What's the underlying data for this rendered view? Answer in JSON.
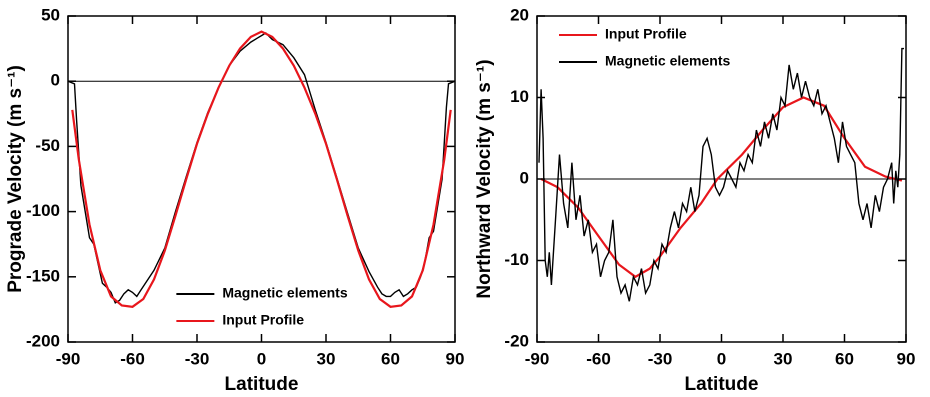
{
  "chart_data": [
    {
      "type": "line",
      "xlabel": "Latitude",
      "ylabel": "Prograde Velocity (m s⁻¹)",
      "xlim": [
        -90,
        90
      ],
      "ylim": [
        -200,
        50
      ],
      "xticks": [
        -90,
        -60,
        -30,
        0,
        30,
        60,
        90
      ],
      "yticks": [
        -200,
        -150,
        -100,
        -50,
        0,
        50
      ],
      "legend": "lower center",
      "series": [
        {
          "name": "Magnetic elements",
          "color": "#000000",
          "x": [
            -90,
            -87,
            -86,
            -84,
            -82,
            -80,
            -78,
            -76,
            -74,
            -72,
            -70,
            -68,
            -66,
            -64,
            -62,
            -60,
            -58,
            -56,
            -54,
            -50,
            -45,
            -40,
            -35,
            -30,
            -25,
            -20,
            -15,
            -10,
            -5,
            -2,
            0,
            2,
            5,
            10,
            15,
            20,
            25,
            30,
            35,
            40,
            45,
            50,
            54,
            56,
            58,
            60,
            62,
            64,
            66,
            68,
            70,
            72,
            74,
            76,
            78,
            80,
            82,
            84,
            86,
            87,
            90
          ],
          "values": [
            0,
            -2,
            -30,
            -80,
            -100,
            -120,
            -125,
            -140,
            -155,
            -158,
            -162,
            -170,
            -168,
            -163,
            -160,
            -162,
            -165,
            -160,
            -155,
            -145,
            -128,
            -100,
            -73,
            -47,
            -24,
            -5,
            12,
            23,
            30,
            33,
            35,
            37,
            32,
            28,
            18,
            5,
            -22,
            -47,
            -74,
            -101,
            -128,
            -146,
            -158,
            -163,
            -165,
            -165,
            -162,
            -160,
            -165,
            -163,
            -160,
            -158,
            -150,
            -138,
            -120,
            -115,
            -95,
            -75,
            -20,
            -2,
            0
          ]
        },
        {
          "name": "Input Profile",
          "color": "#e8161c",
          "x": [
            -88,
            -85,
            -80,
            -75,
            -70,
            -65,
            -60,
            -55,
            -50,
            -45,
            -40,
            -35,
            -30,
            -25,
            -20,
            -15,
            -10,
            -5,
            0,
            5,
            10,
            15,
            20,
            25,
            30,
            35,
            40,
            45,
            50,
            55,
            60,
            65,
            70,
            75,
            80,
            85,
            88
          ],
          "values": [
            -22,
            -60,
            -110,
            -145,
            -165,
            -172,
            -173,
            -167,
            -152,
            -130,
            -103,
            -75,
            -48,
            -25,
            -5,
            12,
            25,
            34,
            38,
            34,
            25,
            12,
            -5,
            -25,
            -48,
            -75,
            -103,
            -130,
            -152,
            -167,
            -173,
            -172,
            -165,
            -145,
            -110,
            -60,
            -22
          ]
        }
      ]
    },
    {
      "type": "line",
      "xlabel": "Latitude",
      "ylabel": "Northward Velocity (m s⁻¹)",
      "xlim": [
        -90,
        90
      ],
      "ylim": [
        -20,
        20
      ],
      "xticks": [
        -90,
        -60,
        -30,
        0,
        30,
        60,
        90
      ],
      "yticks": [
        -20,
        -10,
        0,
        10,
        20
      ],
      "legend": "upper left",
      "series": [
        {
          "name": "Input Profile",
          "color": "#e8161c",
          "x": [
            -88,
            -80,
            -70,
            -60,
            -50,
            -42,
            -35,
            -30,
            -20,
            -10,
            -2,
            0,
            10,
            20,
            30,
            40,
            50,
            60,
            70,
            80,
            88
          ],
          "values": [
            0,
            -1,
            -3.5,
            -7,
            -10.5,
            -12,
            -11,
            -9.5,
            -6,
            -3,
            0,
            0.5,
            3,
            6,
            8.8,
            10,
            9,
            5,
            1.5,
            0.3,
            -0.2
          ]
        },
        {
          "name": "Magnetic elements",
          "color": "#000000",
          "x": [
            -89,
            -88,
            -87,
            -86,
            -85,
            -84,
            -83,
            -81,
            -79,
            -77,
            -75,
            -73,
            -71,
            -69,
            -67,
            -65,
            -63,
            -61,
            -59,
            -57,
            -55,
            -53,
            -51,
            -49,
            -47,
            -45,
            -43,
            -41,
            -39,
            -37,
            -35,
            -33,
            -31,
            -29,
            -27,
            -25,
            -23,
            -21,
            -19,
            -17,
            -15,
            -13,
            -11,
            -9,
            -7,
            -5,
            -3,
            -1,
            1,
            3,
            5,
            7,
            9,
            11,
            13,
            15,
            17,
            19,
            21,
            23,
            25,
            27,
            29,
            31,
            33,
            35,
            37,
            39,
            41,
            43,
            45,
            47,
            49,
            51,
            53,
            55,
            57,
            59,
            61,
            63,
            65,
            67,
            69,
            71,
            73,
            75,
            77,
            79,
            81,
            83,
            84,
            85,
            86,
            87,
            88,
            89
          ],
          "values": [
            2,
            11,
            5,
            -10,
            -12,
            -9,
            -13,
            -5,
            3,
            -3,
            -6,
            2,
            -5,
            -2,
            -7,
            -5,
            -9,
            -8,
            -12,
            -10,
            -9,
            -5,
            -12,
            -14,
            -13,
            -15,
            -12,
            -13,
            -11,
            -14,
            -13,
            -10,
            -11,
            -8,
            -9,
            -6,
            -4,
            -6,
            -3,
            -4,
            -1,
            -4,
            -2,
            4,
            5,
            3,
            -1,
            -2,
            -1,
            1,
            0,
            -1,
            2,
            1,
            3,
            2,
            6,
            4,
            7,
            5,
            8,
            6,
            10,
            9,
            14,
            11,
            13,
            10,
            12,
            10,
            9,
            11,
            8,
            9,
            7,
            5,
            2,
            7,
            4,
            3,
            2,
            -3,
            -5,
            -3,
            -6,
            -2,
            -4,
            -1,
            0,
            2,
            -3,
            1,
            -1,
            3,
            16,
            16
          ]
        }
      ]
    }
  ]
}
